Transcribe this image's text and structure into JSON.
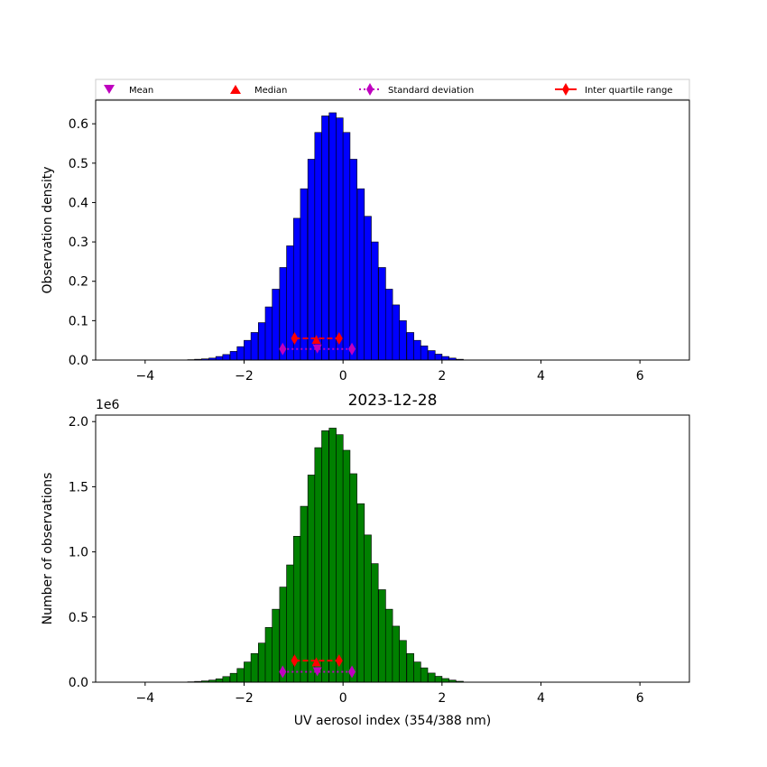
{
  "colors": {
    "top_bars": "#0000ff",
    "bottom_bars": "#008000",
    "mean": "#bf00bf",
    "median": "#ff0000",
    "std": "#bf00bf",
    "iqr": "#ff0000"
  },
  "legend": {
    "mean": "Mean",
    "median": "Median",
    "std": "Standard deviation",
    "iqr": "Inter quartile range"
  },
  "chart_data": [
    {
      "type": "bar",
      "ylabel": "Observation density",
      "xlim": [
        -5,
        7
      ],
      "ylim": [
        0,
        0.66
      ],
      "xticks": [
        "−4",
        "−2",
        "0",
        "2",
        "4",
        "6"
      ],
      "yticks": [
        "0.0",
        "0.1",
        "0.2",
        "0.3",
        "0.4",
        "0.5",
        "0.6"
      ],
      "bin_width": 0.143,
      "bin_centers": [
        -3.07,
        -2.93,
        -2.79,
        -2.64,
        -2.5,
        -2.36,
        -2.21,
        -2.07,
        -1.93,
        -1.79,
        -1.64,
        -1.5,
        -1.36,
        -1.21,
        -1.07,
        -0.93,
        -0.79,
        -0.64,
        -0.5,
        -0.36,
        -0.21,
        -0.07,
        0.07,
        0.21,
        0.36,
        0.5,
        0.64,
        0.79,
        0.93,
        1.07,
        1.21,
        1.36,
        1.5,
        1.64,
        1.79,
        1.93,
        2.07,
        2.21,
        2.36
      ],
      "values": [
        0.001,
        0.002,
        0.003,
        0.005,
        0.009,
        0.014,
        0.022,
        0.034,
        0.05,
        0.07,
        0.095,
        0.135,
        0.18,
        0.235,
        0.29,
        0.36,
        0.435,
        0.51,
        0.578,
        0.62,
        0.628,
        0.615,
        0.578,
        0.51,
        0.435,
        0.365,
        0.3,
        0.235,
        0.18,
        0.14,
        0.1,
        0.07,
        0.05,
        0.036,
        0.024,
        0.015,
        0.009,
        0.005,
        0.002
      ],
      "markers": {
        "mean": 0.028,
        "median": 0.05,
        "iqr_y": 0.055,
        "std_y": 0.028
      },
      "stats": {
        "mean": -0.52,
        "median": -0.54,
        "q1": -0.98,
        "q3": -0.08,
        "std_low": -1.22,
        "std_high": 0.18
      }
    },
    {
      "type": "bar",
      "title": "2023-12-28",
      "xlabel": "UV aerosol index (354/388 nm)",
      "ylabel": "Number of observations",
      "offset_label": "1e6",
      "xlim": [
        -5,
        7
      ],
      "ylim": [
        0,
        2.05
      ],
      "xticks": [
        "−4",
        "−2",
        "0",
        "2",
        "4",
        "6"
      ],
      "yticks": [
        "0.0",
        "0.5",
        "1.0",
        "1.5",
        "2.0"
      ],
      "bin_width": 0.143,
      "bin_centers": [
        -3.07,
        -2.93,
        -2.79,
        -2.64,
        -2.5,
        -2.36,
        -2.21,
        -2.07,
        -1.93,
        -1.79,
        -1.64,
        -1.5,
        -1.36,
        -1.21,
        -1.07,
        -0.93,
        -0.79,
        -0.64,
        -0.5,
        -0.36,
        -0.21,
        -0.07,
        0.07,
        0.21,
        0.36,
        0.5,
        0.64,
        0.79,
        0.93,
        1.07,
        1.21,
        1.36,
        1.5,
        1.64,
        1.79,
        1.93,
        2.07,
        2.21,
        2.36
      ],
      "values": [
        0.003,
        0.006,
        0.01,
        0.016,
        0.026,
        0.043,
        0.068,
        0.105,
        0.155,
        0.22,
        0.3,
        0.42,
        0.56,
        0.73,
        0.9,
        1.12,
        1.35,
        1.59,
        1.8,
        1.93,
        1.95,
        1.9,
        1.78,
        1.6,
        1.37,
        1.13,
        0.91,
        0.71,
        0.56,
        0.43,
        0.32,
        0.22,
        0.155,
        0.11,
        0.07,
        0.045,
        0.028,
        0.016,
        0.007
      ],
      "markers": {
        "mean": 0.08,
        "median": 0.15,
        "iqr_y": 0.165,
        "std_y": 0.08
      },
      "stats": {
        "mean": -0.52,
        "median": -0.54,
        "q1": -0.98,
        "q3": -0.08,
        "std_low": -1.22,
        "std_high": 0.18
      }
    }
  ]
}
